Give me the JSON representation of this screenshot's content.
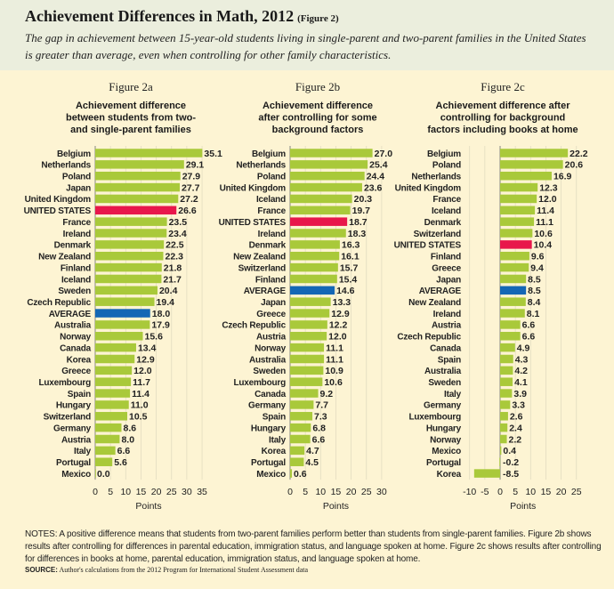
{
  "header": {
    "title": "Achievement Differences in Math, 2012",
    "figure_tag": "(Figure 2)",
    "subtitle": "The gap in achievement between 15-year-old students living in single-parent and two-parent families in the United States is greater than average, even when controlling for other family characteristics."
  },
  "colors": {
    "bar": "#a9c93a",
    "united_states": "#e8174b",
    "average": "#1467b5",
    "header_bg": "#ebeedd",
    "chart_bg": "#fdf4d3"
  },
  "chart_data": [
    {
      "type": "bar",
      "orientation": "horizontal",
      "figure_label": "Figure 2a",
      "title": [
        "Achievement difference",
        "between students from two-",
        "and single-parent families"
      ],
      "xlabel": "Points",
      "xlim": [
        0,
        35
      ],
      "xticks": [
        0,
        5,
        10,
        15,
        20,
        25,
        30,
        35
      ],
      "grid": true,
      "categories": [
        "Belgium",
        "Netherlands",
        "Poland",
        "Japan",
        "United Kingdom",
        "UNITED STATES",
        "France",
        "Ireland",
        "Denmark",
        "New Zealand",
        "Finland",
        "Iceland",
        "Sweden",
        "Czech Republic",
        "AVERAGE",
        "Australia",
        "Norway",
        "Canada",
        "Korea",
        "Greece",
        "Luxembourg",
        "Spain",
        "Hungary",
        "Switzerland",
        "Germany",
        "Austria",
        "Italy",
        "Portugal",
        "Mexico"
      ],
      "values": [
        35.1,
        29.1,
        27.9,
        27.7,
        27.2,
        26.6,
        23.5,
        23.4,
        22.5,
        22.3,
        21.8,
        21.7,
        20.4,
        19.4,
        18.0,
        17.9,
        15.6,
        13.4,
        12.9,
        12.0,
        11.7,
        11.4,
        11.0,
        10.5,
        8.6,
        8.0,
        6.6,
        5.6,
        0.0
      ]
    },
    {
      "type": "bar",
      "orientation": "horizontal",
      "figure_label": "Figure 2b",
      "title": [
        "Achievement difference",
        "after controlling for some",
        "background factors"
      ],
      "xlabel": "Points",
      "xlim": [
        0,
        30
      ],
      "xticks": [
        0,
        5,
        10,
        15,
        20,
        25,
        30
      ],
      "grid": true,
      "categories": [
        "Belgium",
        "Netherlands",
        "Poland",
        "United Kingdom",
        "Iceland",
        "France",
        "UNITED STATES",
        "Ireland",
        "Denmark",
        "New Zealand",
        "Switzerland",
        "Finland",
        "AVERAGE",
        "Japan",
        "Greece",
        "Czech Republic",
        "Austria",
        "Norway",
        "Australia",
        "Sweden",
        "Luxembourg",
        "Canada",
        "Germany",
        "Spain",
        "Hungary",
        "Italy",
        "Korea",
        "Portugal",
        "Mexico"
      ],
      "values": [
        27.0,
        25.4,
        24.4,
        23.6,
        20.3,
        19.7,
        18.7,
        18.3,
        16.3,
        16.1,
        15.7,
        15.4,
        14.6,
        13.3,
        12.9,
        12.2,
        12.0,
        11.1,
        11.1,
        10.9,
        10.6,
        9.2,
        7.7,
        7.3,
        6.8,
        6.6,
        4.7,
        4.5,
        0.6
      ]
    },
    {
      "type": "bar",
      "orientation": "horizontal",
      "figure_label": "Figure 2c",
      "title": [
        "Achievement difference after",
        "controlling for background",
        "factors including books at home"
      ],
      "xlabel": "Points",
      "xlim": [
        -10,
        25
      ],
      "xticks": [
        -10,
        -5,
        0,
        5,
        10,
        15,
        20,
        25
      ],
      "grid": true,
      "categories": [
        "Belgium",
        "Poland",
        "Netherlands",
        "United Kingdom",
        "France",
        "Iceland",
        "Denmark",
        "Switzerland",
        "UNITED STATES",
        "Finland",
        "Greece",
        "Japan",
        "AVERAGE",
        "New Zealand",
        "Ireland",
        "Austria",
        "Czech Republic",
        "Canada",
        "Spain",
        "Australia",
        "Sweden",
        "Italy",
        "Germany",
        "Luxembourg",
        "Hungary",
        "Norway",
        "Mexico",
        "Portugal",
        "Korea"
      ],
      "values": [
        22.2,
        20.6,
        16.9,
        12.3,
        12.0,
        11.4,
        11.1,
        10.6,
        10.4,
        9.6,
        9.4,
        8.5,
        8.5,
        8.4,
        8.1,
        6.6,
        6.6,
        4.9,
        4.3,
        4.2,
        4.1,
        3.9,
        3.3,
        2.6,
        2.4,
        2.2,
        0.4,
        -0.2,
        -8.5
      ]
    }
  ],
  "footer": {
    "notes": "NOTES: A positive difference means that students from two-parent families perform better than students from single-parent families. Figure 2b shows results after controlling for differences in parental education, immigration status, and language spoken at home. Figure 2c shows results after controlling for differences in books at home, parental education, immigration status, and language spoken at home.",
    "source_label": "SOURCE:",
    "source_text": "Author's calculations from the 2012 Program for International Student Assessment data"
  }
}
